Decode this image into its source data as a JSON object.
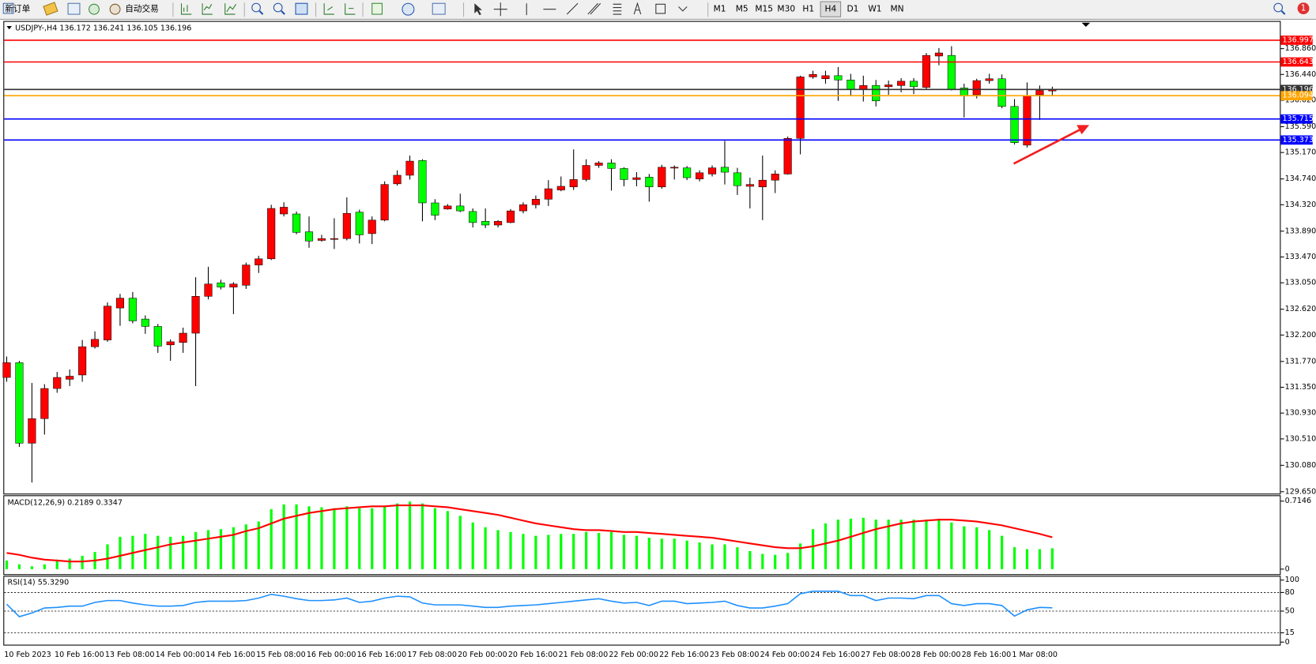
{
  "toolbar": {
    "new_order": "新订单",
    "auto_trading": "自动交易",
    "timeframes": [
      "M1",
      "M5",
      "M15",
      "M30",
      "H1",
      "H4",
      "D1",
      "W1",
      "MN"
    ],
    "active": "H4",
    "notifications": "1"
  },
  "chart_data": [
    {
      "type": "candlestick",
      "title": "USDJPY-,H4  136.172 136.241 136.105 136.196",
      "up_color": "#ff0000",
      "down_color": "#00ff00",
      "categories": [
        "10 Feb 2023",
        null,
        null,
        null,
        "10 Feb 16:00",
        null,
        null,
        null,
        "13 Feb 08:00",
        null,
        null,
        null,
        "14 Feb 00:00",
        null,
        null,
        null,
        "14 Feb 16:00",
        null,
        null,
        null,
        "15 Feb 08:00",
        null,
        null,
        null,
        "16 Feb 00:00",
        null,
        null,
        null,
        "16 Feb 16:00",
        null,
        null,
        null,
        "17 Feb 08:00",
        null,
        null,
        null,
        "20 Feb 00:00",
        null,
        null,
        null,
        "20 Feb 16:00",
        null,
        null,
        null,
        "21 Feb 08:00",
        null,
        null,
        null,
        "22 Feb 00:00",
        null,
        null,
        null,
        "22 Feb 16:00",
        null,
        null,
        null,
        "23 Feb 08:00",
        null,
        null,
        null,
        "24 Feb 00:00",
        null,
        null,
        null,
        "24 Feb 16:00",
        null,
        null,
        null,
        "27 Feb 08:00",
        null,
        null,
        null,
        "28 Feb 00:00",
        null,
        null,
        null,
        "28 Feb 16:00",
        null,
        null,
        null,
        "1 Mar 08:00",
        null,
        null,
        null
      ],
      "open": [
        131.51,
        131.75,
        130.44,
        130.84,
        131.33,
        131.48,
        131.55,
        132.01,
        132.12,
        132.64,
        132.8,
        132.46,
        132.34,
        132.04,
        132.08,
        132.23,
        132.83,
        133.05,
        132.98,
        133.01,
        133.34,
        133.44,
        134.17,
        134.17,
        133.88,
        133.74,
        133.76,
        133.77,
        134.2,
        133.85,
        134.07,
        134.66,
        134.8,
        135.04,
        134.35,
        134.25,
        134.3,
        134.21,
        134.05,
        133.99,
        134.03,
        134.22,
        134.32,
        134.41,
        134.56,
        134.61,
        134.73,
        134.96,
        135.0,
        134.91,
        134.73,
        134.77,
        134.61,
        134.92,
        134.92,
        134.74,
        134.82,
        134.93,
        134.84,
        134.62,
        134.61,
        134.72,
        134.82,
        135.4,
        136.4,
        136.37,
        136.42,
        136.35,
        136.19,
        136.26,
        136.24,
        136.26,
        136.33,
        136.23,
        136.74,
        136.75,
        136.22,
        136.11,
        136.34,
        136.37,
        135.92,
        135.29,
        136.11,
        136.172
      ],
      "high": [
        131.85,
        131.78,
        131.42,
        131.4,
        131.6,
        131.64,
        132.12,
        132.26,
        132.73,
        132.87,
        132.9,
        132.52,
        132.38,
        132.13,
        132.32,
        133.14,
        133.31,
        133.1,
        133.06,
        133.38,
        133.49,
        134.32,
        134.36,
        134.21,
        134.13,
        133.83,
        134.1,
        134.44,
        134.24,
        134.13,
        134.7,
        134.88,
        135.12,
        135.06,
        134.41,
        134.33,
        134.5,
        134.26,
        134.26,
        134.07,
        134.25,
        134.36,
        134.47,
        134.72,
        134.78,
        135.22,
        135.06,
        135.03,
        135.06,
        134.93,
        134.85,
        134.82,
        134.97,
        134.96,
        134.95,
        134.88,
        134.96,
        135.36,
        134.92,
        134.76,
        135.12,
        134.88,
        135.43,
        136.42,
        136.5,
        136.5,
        136.56,
        136.45,
        136.42,
        136.35,
        136.34,
        136.38,
        136.38,
        136.79,
        136.87,
        136.9,
        136.29,
        136.37,
        136.45,
        136.44,
        136.04,
        136.31,
        136.26,
        136.241
      ],
      "low": [
        131.44,
        130.38,
        129.8,
        130.58,
        131.26,
        131.37,
        131.44,
        131.98,
        132.09,
        132.35,
        132.39,
        132.22,
        131.91,
        131.78,
        131.91,
        131.37,
        132.78,
        132.94,
        132.54,
        132.95,
        133.21,
        133.42,
        134.13,
        133.84,
        133.62,
        133.72,
        133.6,
        133.74,
        133.69,
        133.68,
        134.05,
        134.63,
        134.73,
        134.05,
        134.07,
        134.24,
        134.2,
        133.95,
        133.94,
        133.95,
        134.02,
        134.18,
        134.26,
        134.3,
        134.54,
        134.56,
        134.7,
        134.92,
        134.55,
        134.62,
        134.62,
        134.37,
        134.58,
        134.73,
        134.72,
        134.7,
        134.78,
        134.65,
        134.48,
        134.26,
        134.07,
        134.51,
        134.81,
        135.14,
        136.37,
        136.29,
        136.01,
        136.09,
        136.0,
        135.92,
        136.11,
        136.15,
        136.12,
        136.2,
        136.59,
        136.18,
        135.74,
        136.05,
        136.29,
        135.89,
        135.3,
        135.25,
        135.7,
        136.105
      ],
      "close": [
        131.75,
        130.44,
        130.84,
        131.33,
        131.51,
        131.53,
        132.01,
        132.13,
        132.67,
        132.8,
        132.43,
        132.34,
        132.02,
        132.09,
        132.23,
        132.83,
        133.03,
        132.98,
        133.03,
        133.34,
        133.44,
        134.26,
        134.28,
        133.87,
        133.73,
        133.77,
        133.77,
        134.18,
        133.83,
        134.07,
        134.65,
        134.8,
        135.03,
        134.35,
        134.15,
        134.3,
        134.22,
        134.03,
        133.99,
        134.05,
        134.22,
        134.32,
        134.41,
        134.58,
        134.62,
        134.73,
        134.96,
        135.0,
        134.91,
        134.73,
        134.76,
        134.61,
        134.93,
        134.93,
        134.76,
        134.84,
        134.92,
        134.85,
        134.63,
        134.65,
        134.72,
        134.82,
        135.4,
        136.4,
        136.44,
        136.42,
        136.35,
        136.2,
        136.26,
        136.01,
        136.27,
        136.33,
        136.24,
        136.75,
        136.79,
        136.2,
        136.09,
        136.34,
        136.37,
        135.92,
        135.33,
        136.09,
        136.18,
        136.196
      ],
      "ylim": [
        129.62,
        137.31
      ],
      "yticks": [
        {
          "value": 136.86,
          "label": "136.860"
        },
        {
          "value": 136.44,
          "label": "136.440"
        },
        {
          "value": 136.02,
          "label": "136.020"
        },
        {
          "value": 135.59,
          "label": "135.590"
        },
        {
          "value": 135.17,
          "label": "135.170"
        },
        {
          "value": 134.74,
          "label": "134.740"
        },
        {
          "value": 134.32,
          "label": "134.320"
        },
        {
          "value": 133.89,
          "label": "133.890"
        },
        {
          "value": 133.47,
          "label": "133.470"
        },
        {
          "value": 133.05,
          "label": "133.050"
        },
        {
          "value": 132.62,
          "label": "132.620"
        },
        {
          "value": 132.2,
          "label": "132.200"
        },
        {
          "value": 131.77,
          "label": "131.770"
        },
        {
          "value": 131.35,
          "label": "131.350"
        },
        {
          "value": 130.93,
          "label": "130.930"
        },
        {
          "value": 130.51,
          "label": "130.510"
        },
        {
          "value": 130.08,
          "label": "130.080"
        },
        {
          "value": 129.65,
          "label": "129.650"
        }
      ],
      "levels": [
        {
          "value": 136.997,
          "color": "#ff0000"
        },
        {
          "value": 136.643,
          "color": "#ff0000"
        },
        {
          "value": 136.196,
          "color": "#333333"
        },
        {
          "value": 136.094,
          "color": "#ffa500"
        },
        {
          "value": 135.715,
          "color": "#0000ff"
        },
        {
          "value": 135.373,
          "color": "#0000ff"
        }
      ]
    },
    {
      "type": "macd",
      "title": "MACD(12,26,9) 0.2189 0.3347",
      "histogram": {
        "color": "#00ff00",
        "values": [
          0.09,
          0.05,
          0.03,
          0.05,
          0.1,
          0.11,
          0.14,
          0.18,
          0.26,
          0.34,
          0.35,
          0.37,
          0.35,
          0.34,
          0.35,
          0.39,
          0.41,
          0.42,
          0.44,
          0.47,
          0.5,
          0.63,
          0.68,
          0.68,
          0.66,
          0.65,
          0.64,
          0.66,
          0.64,
          0.64,
          0.66,
          0.69,
          0.71,
          0.69,
          0.64,
          0.61,
          0.56,
          0.49,
          0.44,
          0.41,
          0.39,
          0.37,
          0.35,
          0.36,
          0.37,
          0.37,
          0.39,
          0.38,
          0.39,
          0.36,
          0.35,
          0.33,
          0.32,
          0.32,
          0.3,
          0.28,
          0.26,
          0.26,
          0.23,
          0.19,
          0.16,
          0.15,
          0.17,
          0.27,
          0.42,
          0.48,
          0.52,
          0.53,
          0.54,
          0.52,
          0.52,
          0.52,
          0.52,
          0.52,
          0.53,
          0.49,
          0.45,
          0.44,
          0.41,
          0.35,
          0.23,
          0.21,
          0.21,
          0.2189
        ]
      },
      "signal": {
        "color": "#ff0000",
        "values": [
          0.17,
          0.15,
          0.12,
          0.1,
          0.09,
          0.08,
          0.08,
          0.09,
          0.11,
          0.14,
          0.17,
          0.2,
          0.23,
          0.26,
          0.28,
          0.3,
          0.32,
          0.34,
          0.36,
          0.4,
          0.43,
          0.48,
          0.53,
          0.56,
          0.59,
          0.61,
          0.63,
          0.64,
          0.65,
          0.66,
          0.66,
          0.67,
          0.67,
          0.67,
          0.66,
          0.65,
          0.63,
          0.61,
          0.59,
          0.57,
          0.54,
          0.51,
          0.48,
          0.46,
          0.44,
          0.42,
          0.41,
          0.41,
          0.4,
          0.39,
          0.39,
          0.38,
          0.37,
          0.36,
          0.35,
          0.34,
          0.33,
          0.31,
          0.29,
          0.27,
          0.25,
          0.23,
          0.22,
          0.22,
          0.24,
          0.27,
          0.3,
          0.34,
          0.38,
          0.42,
          0.45,
          0.48,
          0.5,
          0.51,
          0.52,
          0.52,
          0.51,
          0.5,
          0.48,
          0.46,
          0.43,
          0.4,
          0.37,
          0.3347
        ]
      },
      "ylim": [
        -0.062,
        0.776
      ],
      "yticks": [
        0.7146,
        0
      ]
    },
    {
      "type": "line",
      "title": "RSI(14) 55.3290",
      "color": "#1e90ff",
      "values": [
        61,
        41,
        47,
        55,
        56,
        58,
        58,
        64,
        67,
        67,
        63,
        60,
        58,
        58,
        59,
        64,
        66,
        66,
        66,
        67,
        71,
        77,
        74,
        70,
        67,
        67,
        68,
        71,
        64,
        66,
        71,
        74,
        73,
        63,
        60,
        60,
        60,
        58,
        56,
        56,
        58,
        59,
        60,
        62,
        64,
        66,
        68,
        70,
        66,
        63,
        64,
        59,
        66,
        66,
        62,
        63,
        64,
        66,
        59,
        55,
        55,
        58,
        62,
        78,
        82,
        82,
        82,
        75,
        75,
        67,
        71,
        71,
        70,
        75,
        75,
        62,
        59,
        62,
        62,
        59,
        42,
        52,
        56,
        55.329
      ],
      "ylim": [
        -5.5,
        106.8
      ],
      "yticks": [
        100,
        80,
        50,
        15,
        0
      ],
      "levels": [
        80,
        50,
        15
      ]
    }
  ]
}
